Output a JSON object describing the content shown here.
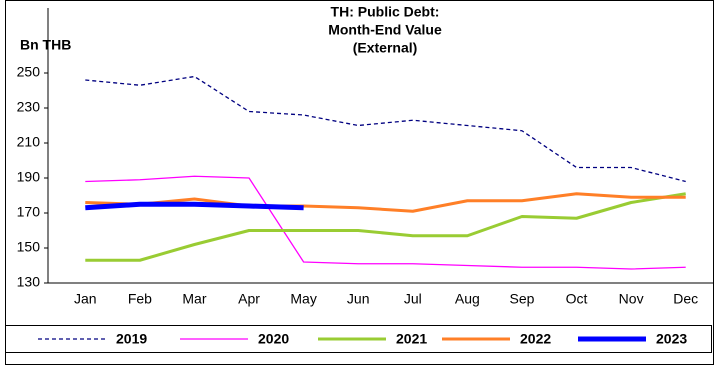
{
  "chart_data": {
    "type": "line",
    "title": [
      "TH: Public Debt:",
      "Month-End Value",
      "(External)"
    ],
    "y_label": "Bn THB",
    "categories": [
      "Jan",
      "Feb",
      "Mar",
      "Apr",
      "May",
      "Jun",
      "Jul",
      "Aug",
      "Sep",
      "Oct",
      "Nov",
      "Dec"
    ],
    "ylim": [
      130,
      270
    ],
    "yticks": [
      130,
      150,
      170,
      190,
      210,
      230,
      250
    ],
    "grid": false,
    "legend": "bottom",
    "series": [
      {
        "name": "2019",
        "color": "#000080",
        "dashed": true,
        "line_width": 1.3,
        "values": [
          246,
          243,
          248,
          228,
          226,
          220,
          223,
          220,
          217,
          196,
          196,
          188
        ]
      },
      {
        "name": "2020",
        "color": "#ff00ff",
        "dashed": false,
        "line_width": 1.3,
        "values": [
          188,
          189,
          191,
          190,
          142,
          141,
          141,
          140,
          139,
          139,
          138,
          139
        ]
      },
      {
        "name": "2021",
        "color": "#99cc33",
        "dashed": false,
        "line_width": 3,
        "values": [
          143,
          143,
          152,
          160,
          160,
          160,
          157,
          157,
          168,
          167,
          176,
          181
        ]
      },
      {
        "name": "2022",
        "color": "#ff7f27",
        "dashed": false,
        "line_width": 3,
        "values": [
          176,
          175,
          178,
          174,
          174,
          173,
          171,
          177,
          177,
          181,
          179,
          179
        ]
      },
      {
        "name": "2023",
        "color": "#0000ff",
        "dashed": false,
        "line_width": 5,
        "values": [
          173,
          175,
          175,
          174,
          173,
          null,
          null,
          null,
          null,
          null,
          null,
          null
        ]
      }
    ]
  }
}
